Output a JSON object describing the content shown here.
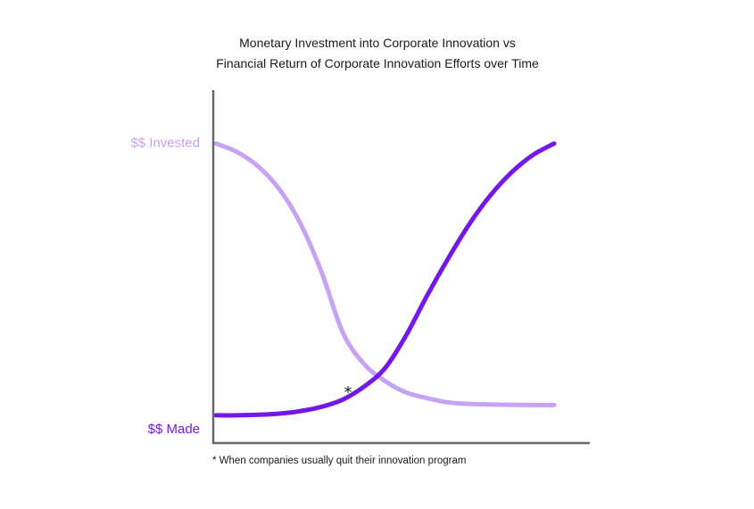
{
  "chart_data": {
    "type": "line",
    "title": [
      "Monetary Investment into Corporate Innovation vs",
      "Financial Return of Corporate Innovation Efforts over Time"
    ],
    "x": [
      0,
      1,
      2,
      3,
      4,
      5,
      6,
      7,
      8,
      9,
      10,
      11,
      12,
      13,
      14,
      15,
      16
    ],
    "xlim": [
      0,
      16
    ],
    "ylim": [
      0,
      1
    ],
    "series": [
      {
        "name": "$$ Invested",
        "color": "#c7a3f5",
        "values": [
          1.0,
          0.97,
          0.92,
          0.84,
          0.72,
          0.55,
          0.34,
          0.23,
          0.17,
          0.13,
          0.11,
          0.095,
          0.09,
          0.088,
          0.087,
          0.086,
          0.086
        ]
      },
      {
        "name": "$$ Made",
        "color": "#7318e8",
        "values": [
          0.05,
          0.05,
          0.052,
          0.056,
          0.065,
          0.08,
          0.105,
          0.15,
          0.215,
          0.33,
          0.47,
          0.6,
          0.72,
          0.82,
          0.9,
          0.96,
          1.0
        ]
      }
    ],
    "grid": false,
    "legend": "none"
  },
  "annotation": {
    "marker": "*",
    "x": 6.3,
    "y": 0.15
  },
  "footnote": "*  When companies usually quit their innovation program",
  "colors": {
    "axis": "#666666",
    "text": "#1a1a1a"
  }
}
